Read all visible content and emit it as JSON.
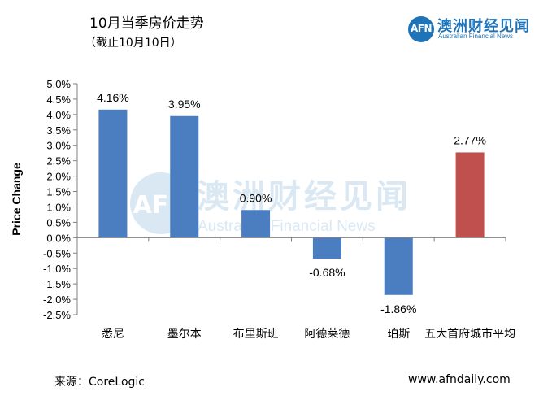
{
  "header": {
    "title": "10月当季房价走势",
    "subtitle": "（截止10月10日）"
  },
  "logo": {
    "letters": "AFN",
    "cn": "澳洲财经见闻",
    "en": "Australian Financial News"
  },
  "watermark": {
    "letters": "AFN",
    "cn": "澳洲财经见闻",
    "en": "Australian Financial News"
  },
  "footer": {
    "source": "来源：CoreLogic",
    "url": "www.afndaily.com"
  },
  "chart_data": {
    "type": "bar",
    "title": "10月当季房价走势",
    "subtitle": "（截止10月10日）",
    "xlabel": "",
    "ylabel": "Price Change",
    "categories": [
      "悉尼",
      "墨尔本",
      "布里斯班",
      "阿德莱德",
      "珀斯",
      "五大首府城市平均"
    ],
    "values": [
      4.16,
      3.95,
      0.9,
      -0.68,
      -1.86,
      2.77
    ],
    "value_labels": [
      "4.16%",
      "3.95%",
      "0.90%",
      "-0.68%",
      "-1.86%",
      "2.77%"
    ],
    "bar_colors": [
      "#4a7ec0",
      "#4a7ec0",
      "#4a7ec0",
      "#4a7ec0",
      "#4a7ec0",
      "#c0504d"
    ],
    "ylim": [
      -2.5,
      5.0
    ],
    "yticks": [
      5.0,
      4.5,
      4.0,
      3.5,
      3.0,
      2.5,
      2.0,
      1.5,
      1.0,
      0.5,
      0.0,
      -0.5,
      -1.0,
      -1.5,
      -2.0,
      -2.5
    ],
    "ytick_labels": [
      "5.0%",
      "4.5%",
      "4.0%",
      "3.5%",
      "3.0%",
      "2.5%",
      "2.0%",
      "1.5%",
      "1.0%",
      "0.5%",
      "0.0%",
      "-0.5%",
      "-1.0%",
      "-1.5%",
      "-2.0%",
      "-2.5%"
    ],
    "grid": false,
    "legend": "none"
  }
}
